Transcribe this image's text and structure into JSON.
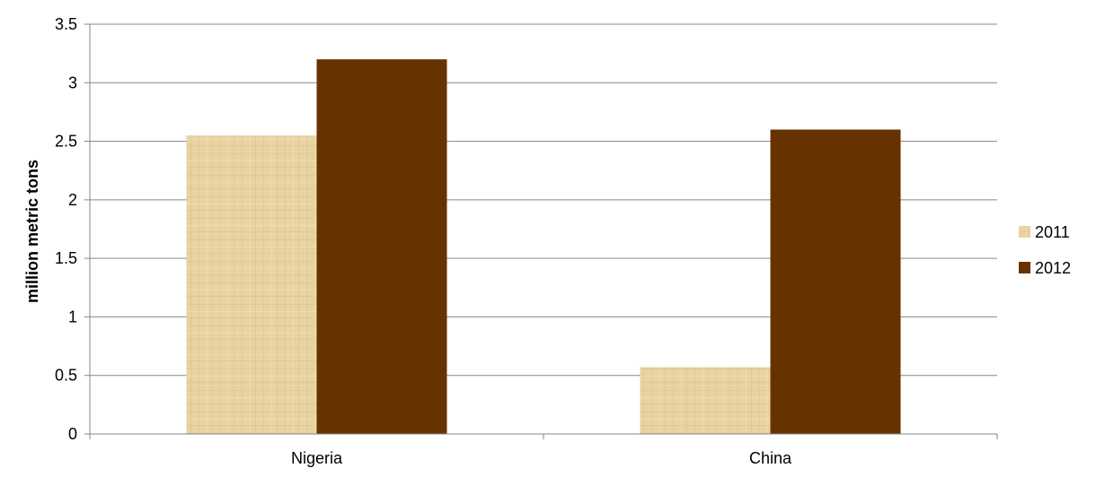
{
  "chart_data": {
    "type": "bar",
    "title": "",
    "xlabel": "",
    "ylabel": "million metric tons",
    "categories": [
      "Nigeria",
      "China"
    ],
    "series": [
      {
        "name": "2011",
        "values": [
          2.55,
          0.57
        ],
        "color": "#E8D3A2",
        "pattern": "paper-texture"
      },
      {
        "name": "2012",
        "values": [
          3.2,
          2.6
        ],
        "color": "#663300"
      }
    ],
    "ylim": [
      0,
      3.5
    ],
    "yticks": [
      "0",
      "0.5",
      "1",
      "1.5",
      "2",
      "2.5",
      "3",
      "3.5"
    ],
    "grid": true,
    "legend_position": "right"
  }
}
